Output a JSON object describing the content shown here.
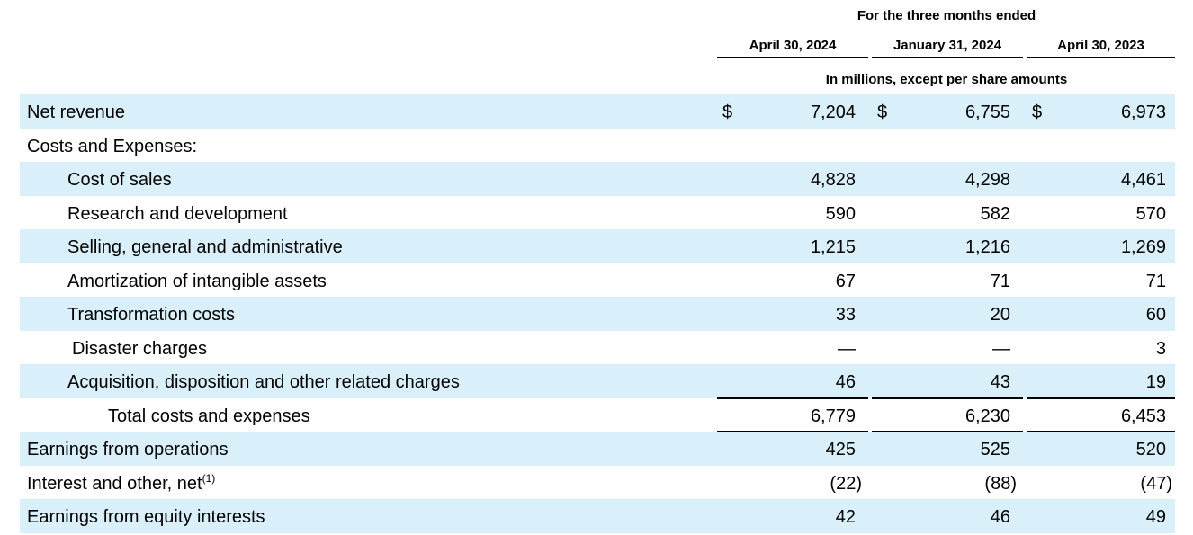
{
  "header": {
    "period_title": "For the three months ended",
    "columns": [
      "April 30, 2024",
      "January 31, 2024",
      "April 30, 2023"
    ],
    "units_note": "In millions, except per share amounts"
  },
  "currency_symbol": "$",
  "rows": [
    {
      "label": "Net revenue",
      "values": [
        "7,204",
        "6,755",
        "6,973"
      ]
    },
    {
      "label": "Costs and Expenses:",
      "values": [
        "",
        "",
        ""
      ]
    },
    {
      "label": "Cost of sales",
      "values": [
        "4,828",
        "4,298",
        "4,461"
      ]
    },
    {
      "label": "Research and development",
      "values": [
        "590",
        "582",
        "570"
      ]
    },
    {
      "label": "Selling, general and administrative",
      "values": [
        "1,215",
        "1,216",
        "1,269"
      ]
    },
    {
      "label": "Amortization of intangible assets",
      "values": [
        "67",
        "71",
        "71"
      ]
    },
    {
      "label": "Transformation costs",
      "values": [
        "33",
        "20",
        "60"
      ]
    },
    {
      "label": "Disaster charges",
      "values": [
        "—",
        "—",
        "3"
      ]
    },
    {
      "label": "Acquisition, disposition and other related charges",
      "values": [
        "46",
        "43",
        "19"
      ]
    },
    {
      "label": "Total costs and expenses",
      "values": [
        "6,779",
        "6,230",
        "6,453"
      ]
    },
    {
      "label": "Earnings from operations",
      "values": [
        "425",
        "525",
        "520"
      ]
    },
    {
      "label": "Interest and other, net",
      "footnote": "(1)",
      "values": [
        "(22)",
        "(88)",
        "(47)"
      ]
    },
    {
      "label": "Earnings from equity interests",
      "values": [
        "42",
        "46",
        "49"
      ]
    }
  ]
}
